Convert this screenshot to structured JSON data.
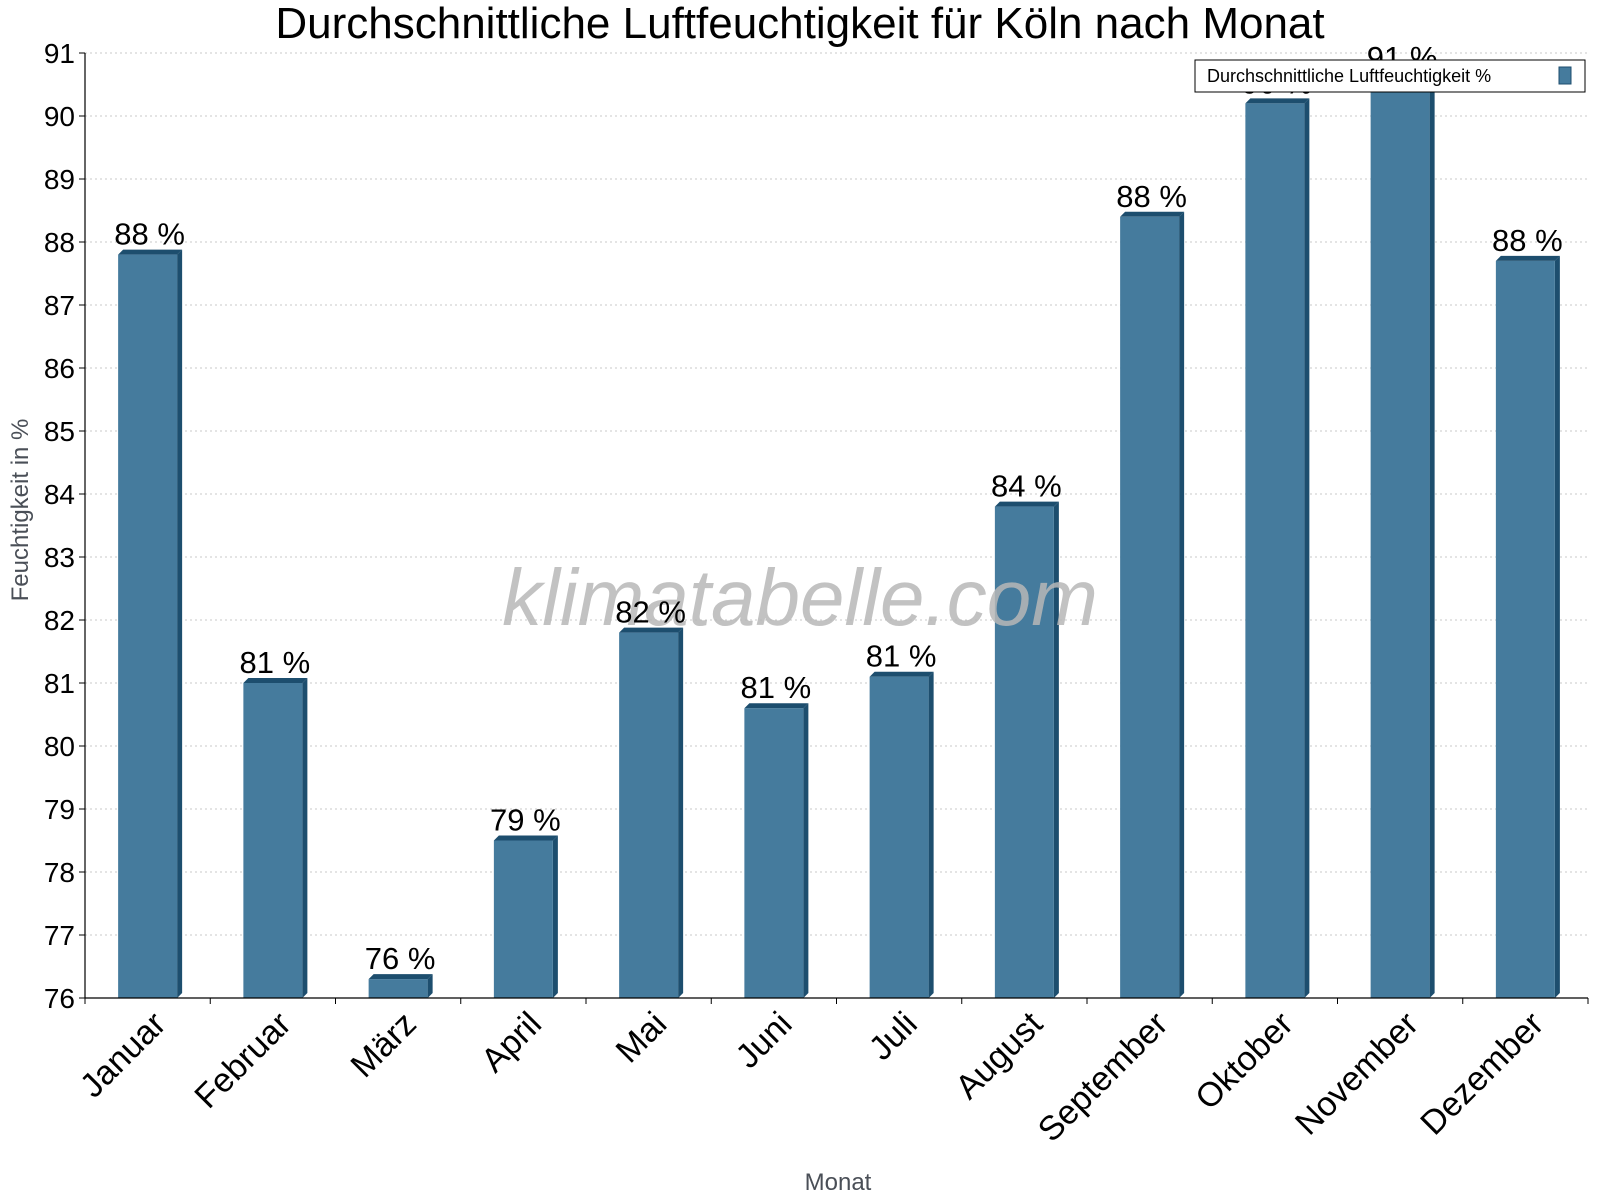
{
  "chart_data": {
    "type": "bar",
    "title": "Durchschnittliche Luftfeuchtigkeit für Köln nach Monat",
    "xlabel": "Monat",
    "ylabel": "Feuchtigkeit in %",
    "ylim": [
      76,
      91
    ],
    "yticks": [
      76,
      77,
      78,
      79,
      80,
      81,
      82,
      83,
      84,
      85,
      86,
      87,
      88,
      89,
      90,
      91
    ],
    "grid": true,
    "legend_position": "top-right",
    "categories": [
      "Januar",
      "Februar",
      "März",
      "April",
      "Mai",
      "Juni",
      "Juli",
      "August",
      "September",
      "Oktober",
      "November",
      "Dezember"
    ],
    "series": [
      {
        "name": "Durchschnittliche Luftfeuchtigkeit %",
        "values": [
          87.8,
          81.0,
          76.3,
          78.5,
          81.8,
          80.6,
          81.1,
          83.8,
          88.4,
          90.2,
          90.6,
          87.7
        ],
        "labels": [
          "88 %",
          "81 %",
          "76 %",
          "79 %",
          "82 %",
          "81 %",
          "81 %",
          "84 %",
          "88 %",
          "90 %",
          "91 %",
          "88 %"
        ]
      }
    ],
    "colors": {
      "bar": "#457b9d",
      "bar_dark": "#1d4e6e"
    }
  },
  "watermark": "klimatabelle.com"
}
